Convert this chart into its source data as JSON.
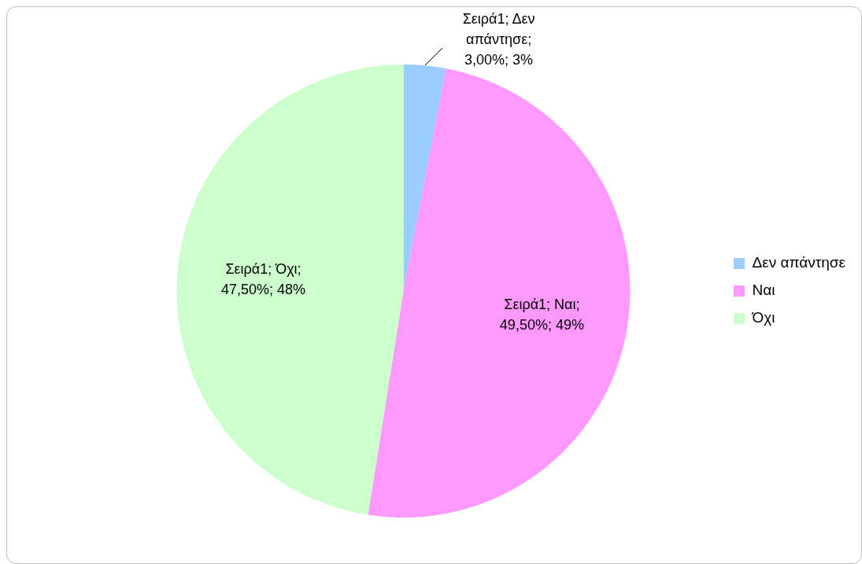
{
  "chart_data": {
    "type": "pie",
    "categories": [
      "Δεν απάντησε",
      "Ναι",
      "Όχι"
    ],
    "values": [
      3,
      49.5,
      47.5
    ],
    "colors": [
      "#99ccff",
      "#ff99ff",
      "#ccffcc"
    ],
    "value_labels": [
      "Σειρά1; Δεν απάντησε; 3,00%; 3%",
      "Σειρά1; Ναι; 49,50%; 49%",
      "Σειρά1; Όχι; 47,50%; 48%"
    ],
    "legend": "right"
  }
}
